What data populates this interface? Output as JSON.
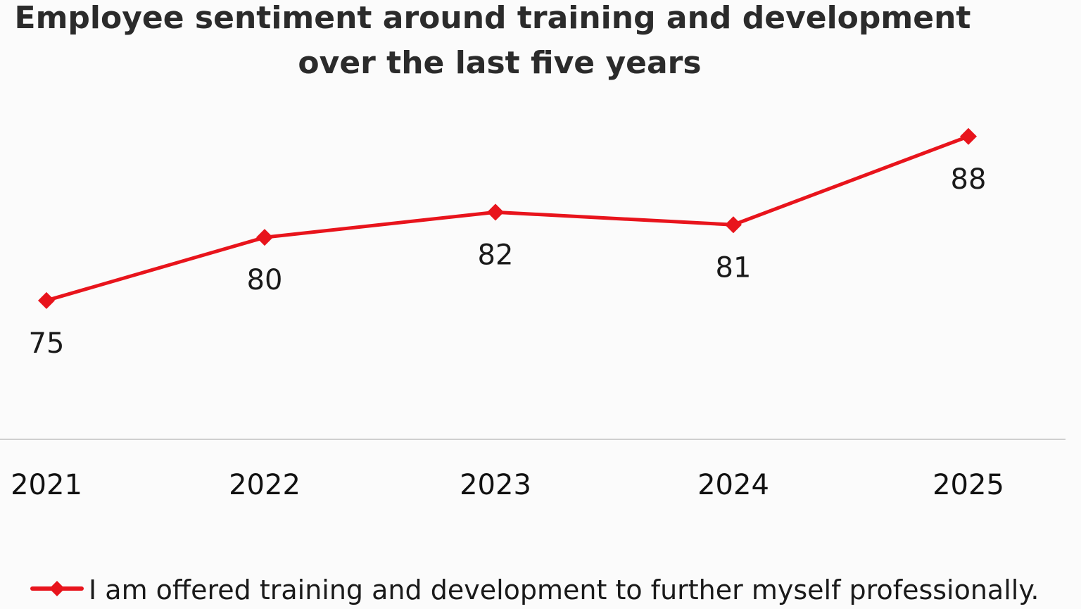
{
  "chart_data": {
    "type": "line",
    "title_lines": [
      "Employee sentiment around training and development",
      "over the last five years"
    ],
    "categories": [
      "2021",
      "2022",
      "2023",
      "2024",
      "2025"
    ],
    "series": [
      {
        "name": "I am offered training and development to further myself professionally.",
        "values": [
          75,
          80,
          82,
          81,
          88
        ],
        "color": "#e8141c",
        "marker": "diamond"
      }
    ],
    "data_labels": [
      "75",
      "80",
      "82",
      "81",
      "88"
    ],
    "ylim": [
      64,
      91
    ],
    "grid": false,
    "legend_position": "bottom-left",
    "axis_color": "#cfcfcf"
  }
}
